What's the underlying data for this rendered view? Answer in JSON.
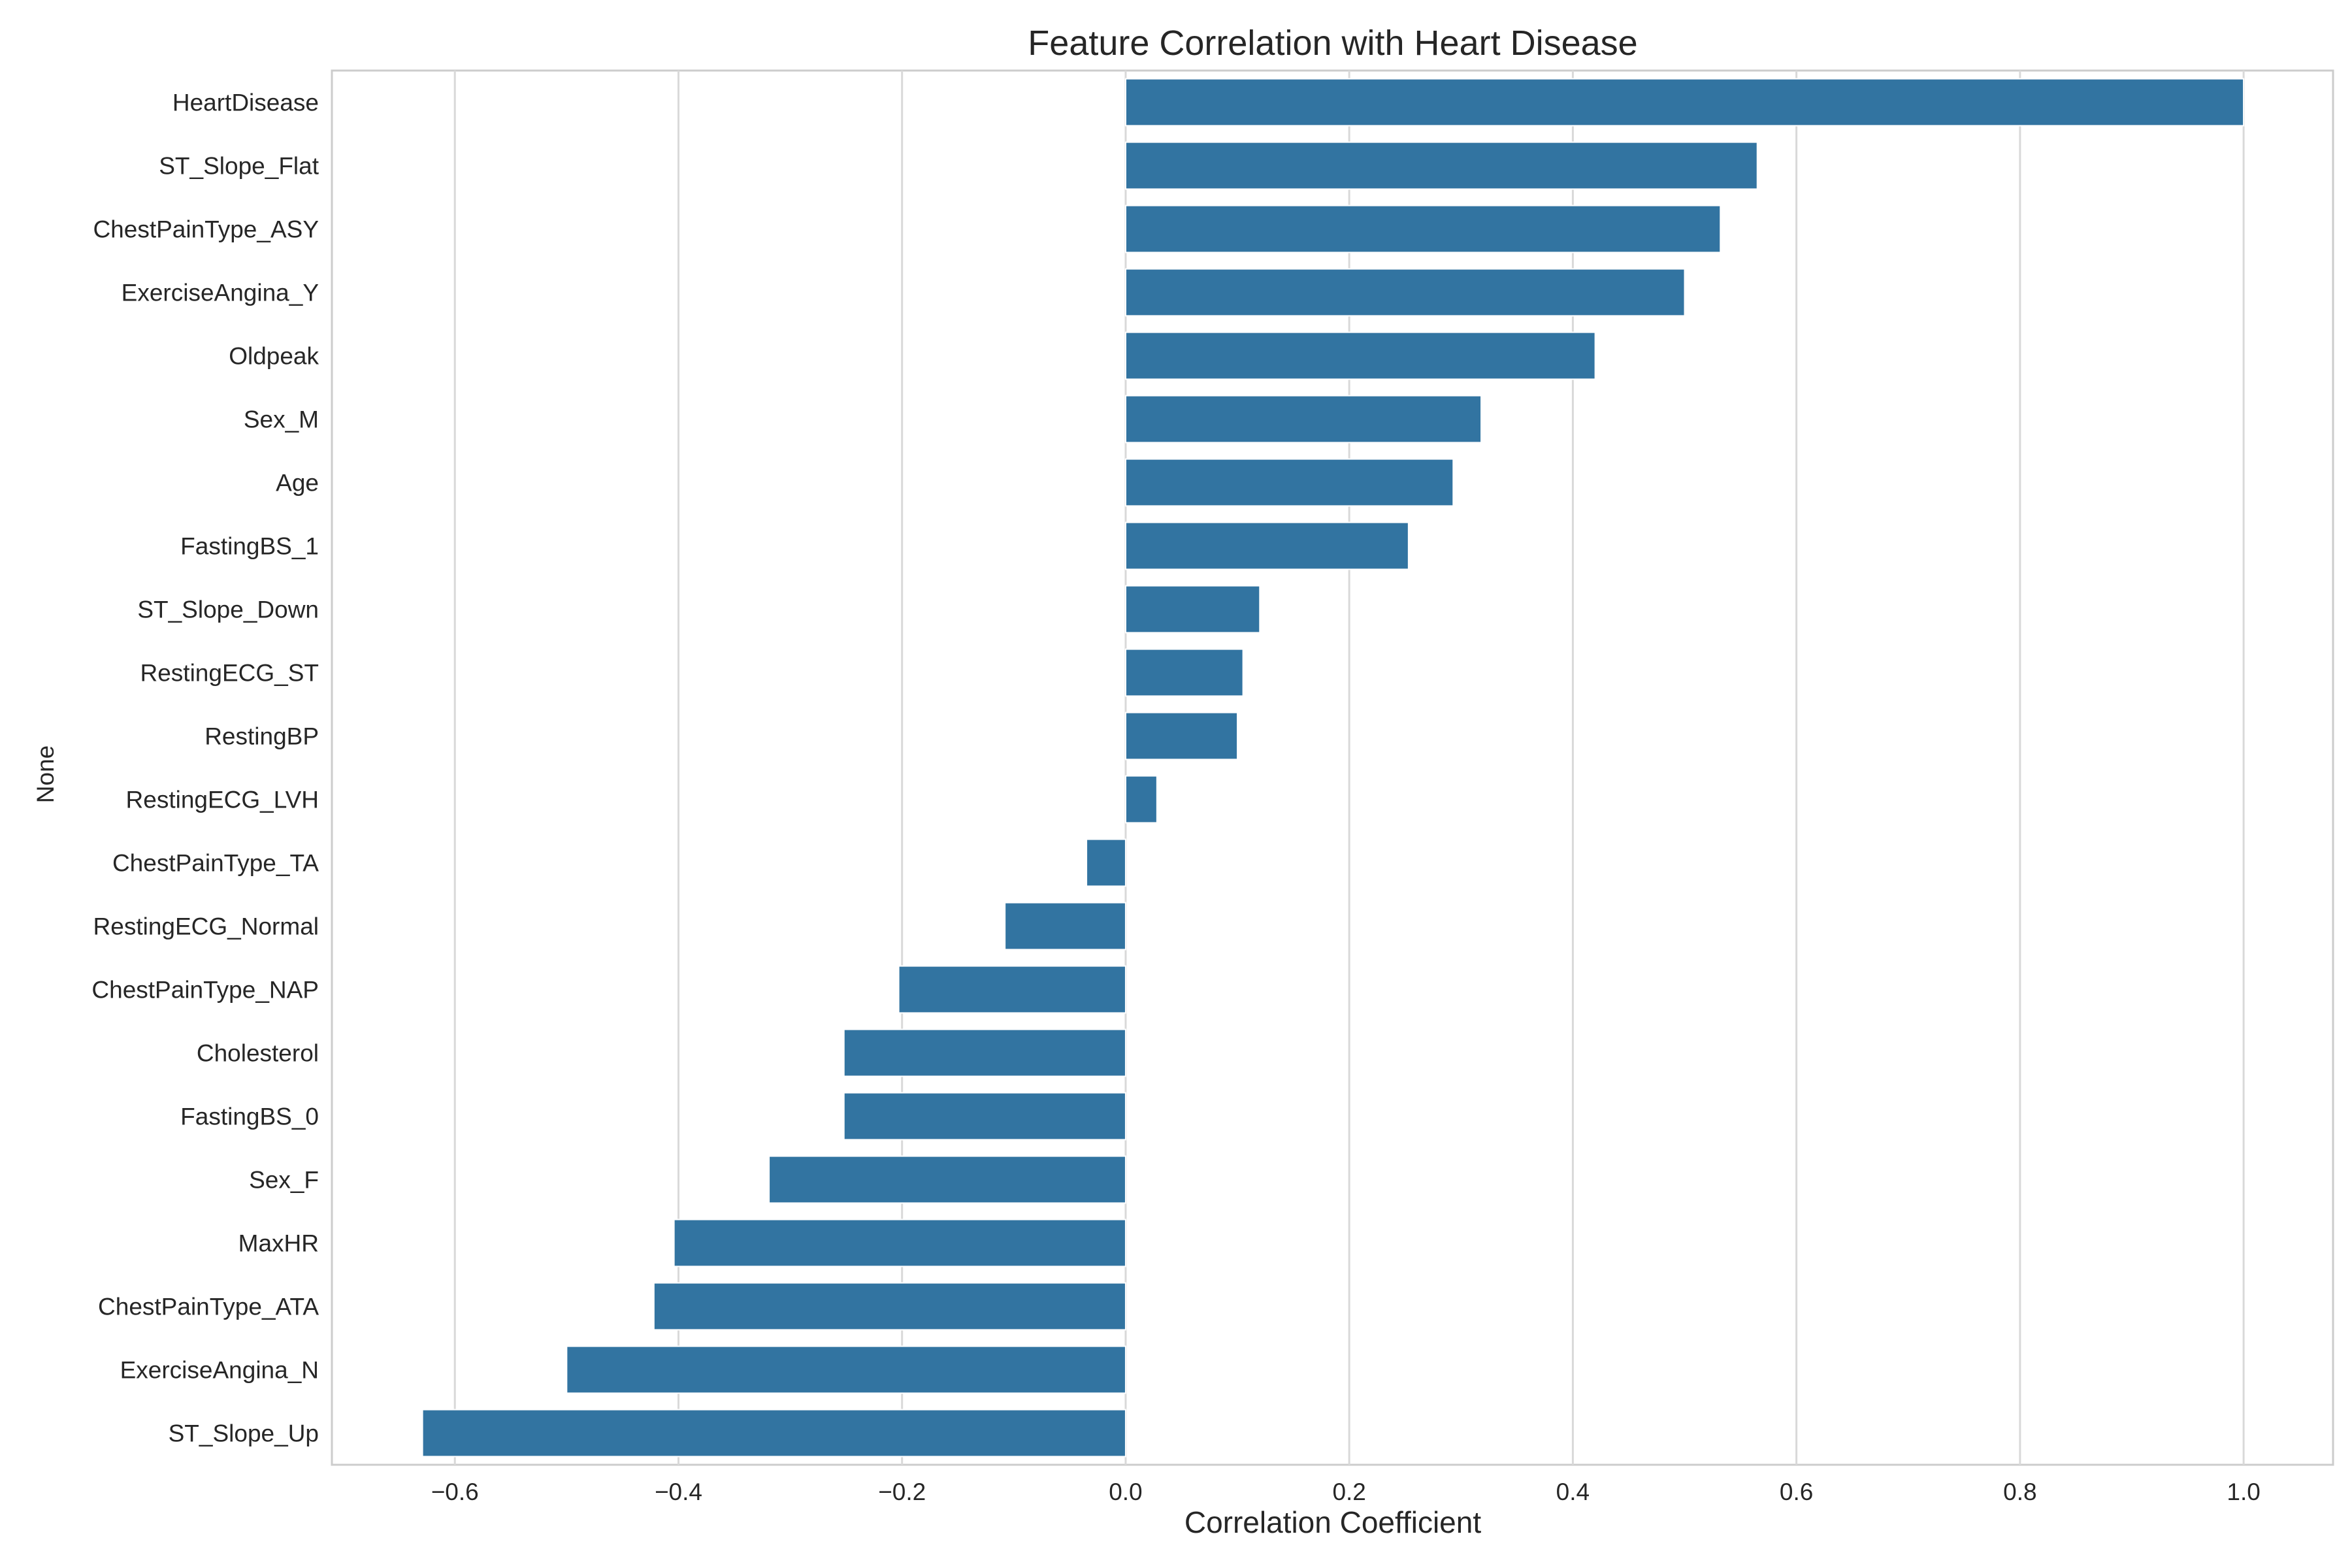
{
  "chart_data": {
    "type": "bar",
    "orientation": "horizontal",
    "title": "Feature Correlation with Heart Disease",
    "xlabel": "Correlation Coefficient",
    "ylabel": "None",
    "xlim": [
      -0.71,
      1.08
    ],
    "xticks": [
      -0.6,
      -0.4,
      -0.2,
      0.0,
      0.2,
      0.4,
      0.6,
      0.8,
      1.0
    ],
    "xtick_labels": [
      "−0.6",
      "−0.4",
      "−0.2",
      "0.0",
      "0.2",
      "0.4",
      "0.6",
      "0.8",
      "1.0"
    ],
    "grid": "vertical",
    "bar_color": "#3274a1",
    "categories": [
      "HeartDisease",
      "ST_Slope_Flat",
      "ChestPainType_ASY",
      "ExerciseAngina_Y",
      "Oldpeak",
      "Sex_M",
      "Age",
      "FastingBS_1",
      "ST_Slope_Down",
      "RestingECG_ST",
      "RestingBP",
      "RestingECG_LVH",
      "ChestPainType_TA",
      "RestingECG_Normal",
      "ChestPainType_NAP",
      "Cholesterol",
      "FastingBS_0",
      "Sex_F",
      "MaxHR",
      "ChestPainType_ATA",
      "ExerciseAngina_N",
      "ST_Slope_Up"
    ],
    "values": [
      1.0,
      0.565,
      0.532,
      0.5,
      0.42,
      0.318,
      0.293,
      0.253,
      0.12,
      0.105,
      0.1,
      0.028,
      -0.035,
      -0.108,
      -0.203,
      -0.252,
      -0.252,
      -0.319,
      -0.404,
      -0.422,
      -0.5,
      -0.629
    ]
  }
}
